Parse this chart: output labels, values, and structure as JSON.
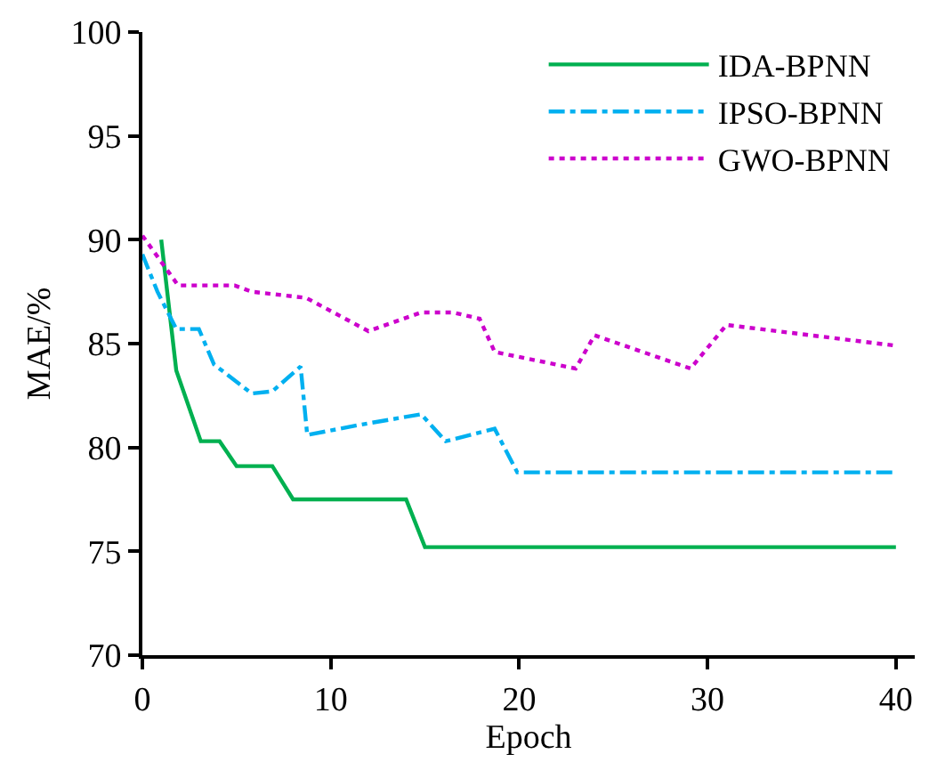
{
  "chart_data": {
    "type": "line",
    "xlabel": "Epoch",
    "ylabel": "MAE/%",
    "xlim": [
      0,
      41
    ],
    "xticks": [
      0,
      10,
      20,
      30,
      40
    ],
    "ylim": [
      70,
      100
    ],
    "yticks": [
      70,
      75,
      80,
      85,
      90,
      95,
      100
    ],
    "legend": "top right",
    "marker": "none",
    "series": [
      {
        "name": "IDA-BPNN",
        "color": "#00b050",
        "line_style": "solid",
        "x": [
          1,
          1.8,
          3.1,
          4.1,
          5.0,
          6.9,
          8.0,
          14.0,
          15.0,
          40
        ],
        "values": [
          90,
          83.7,
          80.3,
          80.3,
          79.1,
          79.1,
          77.5,
          77.5,
          75.2,
          75.2
        ]
      },
      {
        "name": "IPSO-BPNN",
        "color": "#00b0f0",
        "line_style": "dashdot",
        "x": [
          0,
          0.8,
          1.8,
          3.0,
          3.8,
          5.8,
          6.9,
          8.4,
          8.75,
          11.6,
          14.8,
          16.1,
          18.7,
          19.9,
          40
        ],
        "values": [
          89.3,
          87.5,
          85.7,
          85.7,
          84.0,
          82.6,
          82.7,
          83.9,
          80.6,
          81.1,
          81.6,
          80.3,
          80.9,
          78.8,
          78.8
        ]
      },
      {
        "name": "GWO-BPNN",
        "color": "#cc00cc",
        "line_style": "dotted",
        "x": [
          0,
          1.9,
          4.9,
          5.8,
          8.7,
          12.0,
          14.8,
          16.5,
          17.9,
          18.7,
          23.0,
          24.0,
          29.1,
          31.0,
          40
        ],
        "values": [
          90.2,
          87.8,
          87.8,
          87.5,
          87.2,
          85.6,
          86.5,
          86.5,
          86.2,
          84.6,
          83.8,
          85.4,
          83.8,
          85.9,
          84.9
        ]
      }
    ]
  }
}
